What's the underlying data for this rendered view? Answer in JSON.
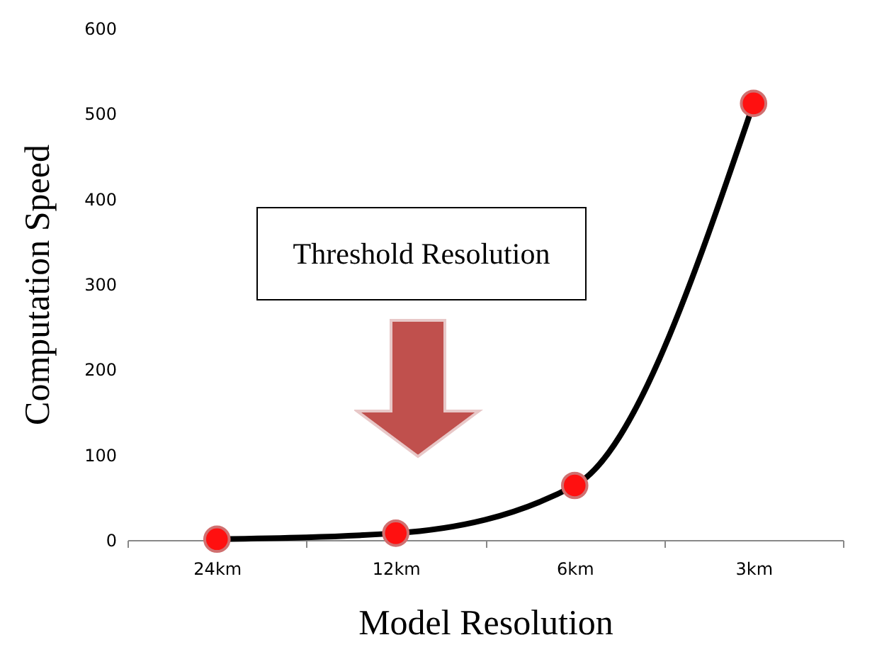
{
  "chart_data": {
    "type": "line",
    "xlabel": "Model Resolution",
    "ylabel": "Computation Speed",
    "categories": [
      "24km",
      "12km",
      "6km",
      "3km"
    ],
    "series": [
      {
        "color": "#000000",
        "values": [
          1,
          8,
          64,
          512
        ]
      }
    ],
    "ylim": [
      0,
      600
    ],
    "yticks": [
      0,
      100,
      200,
      300,
      400,
      500,
      600
    ],
    "grid": false,
    "legend": false,
    "marker": "circle",
    "line_style": "solid",
    "annotations": [
      "Threshold Resolution"
    ]
  }
}
